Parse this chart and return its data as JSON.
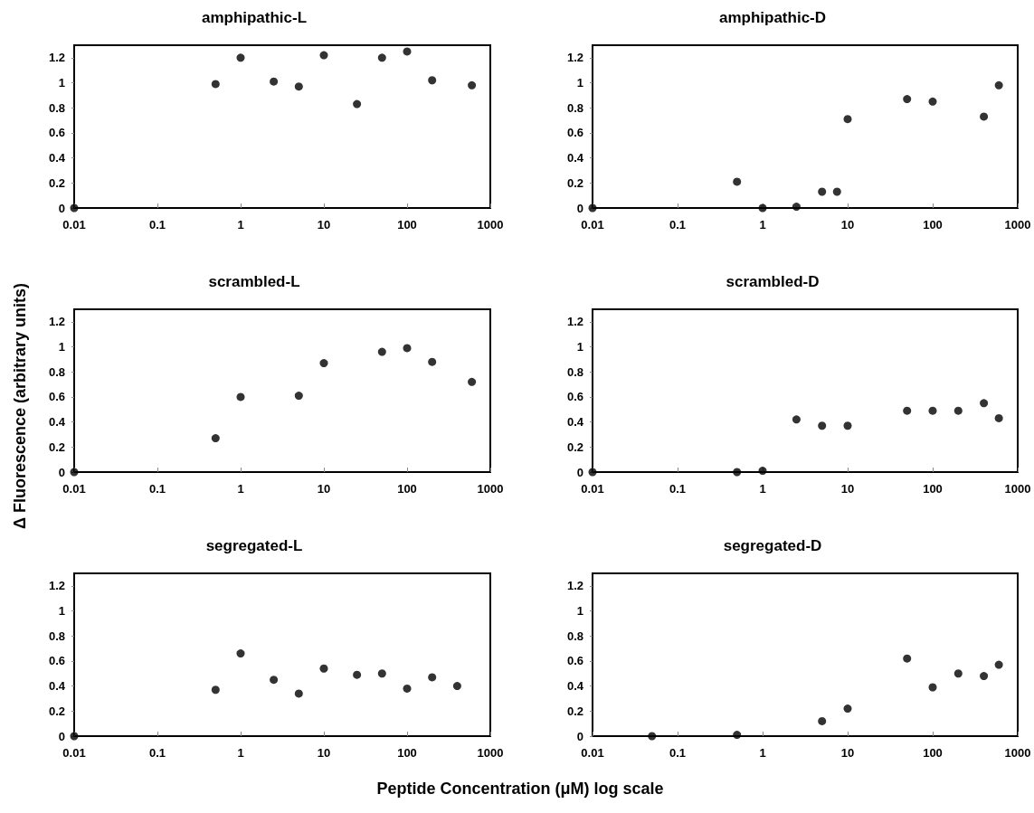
{
  "chart_data": [
    {
      "type": "scatter",
      "title": "amphipathic-L",
      "ylabel": "Δ Fluorescence (arbitrary units)",
      "x": [
        0.01,
        0.5,
        1,
        2.5,
        5,
        10,
        25,
        50,
        100,
        200,
        600
      ],
      "values": [
        0,
        0.99,
        1.2,
        1.01,
        0.97,
        1.22,
        0.83,
        1.2,
        1.25,
        1.02,
        0.98
      ],
      "color": "#000000",
      "marker": "circle",
      "log": "x",
      "xlim": [
        0.01,
        1000
      ],
      "xticks": [
        0.01,
        0.1,
        1,
        10,
        100,
        1000
      ],
      "ylim": [
        0,
        1.3
      ],
      "yticks": [
        0,
        0.2,
        0.4,
        0.6,
        0.8,
        1,
        1.2
      ],
      "grid": false
    },
    {
      "type": "scatter",
      "title": "amphipathic-D",
      "x": [
        0.01,
        0.5,
        1,
        2.5,
        5,
        7.5,
        10,
        50,
        100,
        400,
        600
      ],
      "values": [
        0,
        0.21,
        0,
        0.01,
        0.13,
        0.13,
        0.71,
        0.87,
        0.85,
        0.73,
        0.98
      ],
      "color": "#000000",
      "marker": "circle",
      "log": "x",
      "xlim": [
        0.01,
        1000
      ],
      "xticks": [
        0.01,
        0.1,
        1,
        10,
        100,
        1000
      ],
      "ylim": [
        0,
        1.3
      ],
      "yticks": [
        0,
        0.2,
        0.4,
        0.6,
        0.8,
        1,
        1.2
      ],
      "grid": false
    },
    {
      "type": "scatter",
      "title": "scrambled-L",
      "x": [
        0.01,
        0.5,
        1,
        5,
        10,
        50,
        100,
        200,
        600
      ],
      "values": [
        0,
        0.27,
        0.6,
        0.61,
        0.87,
        0.96,
        0.99,
        0.88,
        0.72
      ],
      "color": "#000000",
      "marker": "circle",
      "log": "x",
      "xlim": [
        0.01,
        1000
      ],
      "xticks": [
        0.01,
        0.1,
        1,
        10,
        100,
        1000
      ],
      "ylim": [
        0,
        1.3
      ],
      "yticks": [
        0,
        0.2,
        0.4,
        0.6,
        0.8,
        1,
        1.2
      ],
      "grid": false
    },
    {
      "type": "scatter",
      "title": "scrambled-D",
      "x": [
        0.01,
        0.5,
        1,
        2.5,
        5,
        10,
        50,
        100,
        200,
        400,
        600
      ],
      "values": [
        0,
        0,
        0.01,
        0.42,
        0.37,
        0.37,
        0.49,
        0.49,
        0.49,
        0.55,
        0.43
      ],
      "color": "#000000",
      "marker": "circle",
      "log": "x",
      "xlim": [
        0.01,
        1000
      ],
      "xticks": [
        0.01,
        0.1,
        1,
        10,
        100,
        1000
      ],
      "ylim": [
        0,
        1.3
      ],
      "yticks": [
        0,
        0.2,
        0.4,
        0.6,
        0.8,
        1,
        1.2
      ],
      "grid": false
    },
    {
      "type": "scatter",
      "title": "segregated-L",
      "xlabel": "Peptide Concentration (μM) log scale",
      "x": [
        0.01,
        0.5,
        1,
        2.5,
        5,
        10,
        25,
        50,
        100,
        200,
        400
      ],
      "values": [
        0,
        0.37,
        0.66,
        0.45,
        0.34,
        0.54,
        0.49,
        0.5,
        0.38,
        0.47,
        0.4
      ],
      "color": "#000000",
      "marker": "circle",
      "log": "x",
      "xlim": [
        0.01,
        1000
      ],
      "xticks": [
        0.01,
        0.1,
        1,
        10,
        100,
        1000
      ],
      "ylim": [
        0,
        1.3
      ],
      "yticks": [
        0,
        0.2,
        0.4,
        0.6,
        0.8,
        1,
        1.2
      ],
      "grid": false
    },
    {
      "type": "scatter",
      "title": "segregated-D",
      "x": [
        0.05,
        0.5,
        5,
        10,
        50,
        100,
        200,
        400,
        600
      ],
      "values": [
        0,
        0.01,
        0.12,
        0.22,
        0.62,
        0.39,
        0.5,
        0.48,
        0.57
      ],
      "color": "#000000",
      "marker": "circle",
      "log": "x",
      "xlim": [
        0.01,
        1000
      ],
      "xticks": [
        0.01,
        0.1,
        1,
        10,
        100,
        1000
      ],
      "ylim": [
        0,
        1.3
      ],
      "yticks": [
        0,
        0.2,
        0.4,
        0.6,
        0.8,
        1,
        1.2
      ],
      "grid": false
    }
  ]
}
